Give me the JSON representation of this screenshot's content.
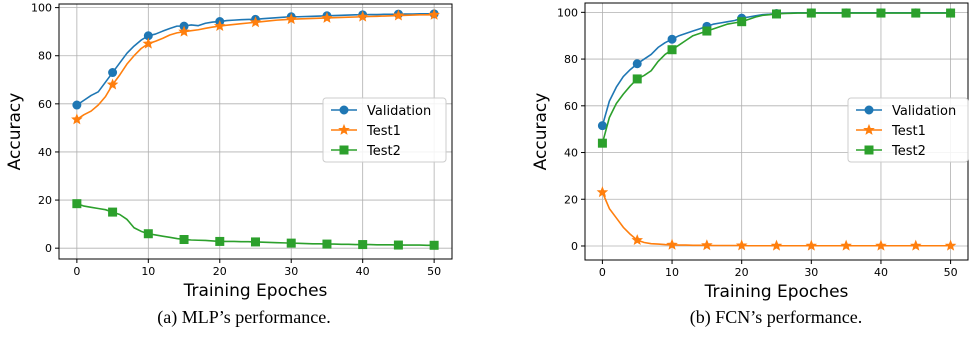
{
  "colors": {
    "validation": "#1f77b4",
    "test1": "#ff7f0e",
    "test2": "#2ca02c",
    "grid": "#b0b0b0",
    "axis": "#000000"
  },
  "chart_data": [
    {
      "type": "line",
      "caption": "(a)  MLP’s performance.",
      "xlabel": "Training Epoches",
      "ylabel": "Accuracy",
      "xlim": [
        -2.5,
        52.5
      ],
      "ylim": [
        -4.5,
        101.5
      ],
      "xticks": [
        0,
        10,
        20,
        30,
        40,
        50
      ],
      "yticks": [
        0,
        20,
        40,
        60,
        80,
        100
      ],
      "grid": true,
      "legend_position": "center-right",
      "x": [
        0,
        1,
        2,
        3,
        4,
        5,
        6,
        7,
        8,
        9,
        10,
        11,
        12,
        13,
        14,
        15,
        16,
        17,
        18,
        19,
        20,
        21,
        22,
        23,
        24,
        25,
        26,
        27,
        28,
        29,
        30,
        31,
        32,
        33,
        34,
        35,
        36,
        37,
        38,
        39,
        40,
        41,
        42,
        43,
        44,
        45,
        46,
        47,
        48,
        49,
        50
      ],
      "marker_every": 5,
      "series": [
        {
          "name": "Validation",
          "color": "#1f77b4",
          "marker": "circle",
          "values": [
            59.5,
            61.5,
            63.5,
            65,
            69,
            73,
            77,
            81,
            84,
            86.5,
            88.3,
            89,
            90.2,
            91.3,
            92.3,
            92.3,
            92.8,
            92.5,
            93.5,
            94,
            94.2,
            94.6,
            94.8,
            95,
            95.1,
            95.1,
            95.4,
            95.6,
            95.8,
            96,
            96.2,
            96.2,
            96.3,
            96.4,
            96.5,
            96.6,
            96.7,
            96.8,
            96.9,
            97,
            97,
            97.1,
            97.1,
            97.2,
            97.2,
            97.3,
            97.3,
            97.3,
            97.4,
            97.4,
            97.4
          ]
        },
        {
          "name": "Test1",
          "color": "#ff7f0e",
          "marker": "star",
          "values": [
            53.5,
            55.5,
            57,
            59.5,
            63,
            68,
            72,
            76.5,
            80,
            83,
            85,
            86,
            87.2,
            88.6,
            89.5,
            90,
            90.4,
            90.8,
            91.4,
            91.9,
            92.3,
            92.7,
            93,
            93.3,
            93.6,
            93.9,
            94.2,
            94.5,
            94.8,
            95,
            95.2,
            95.3,
            95.4,
            95.5,
            95.6,
            95.7,
            95.8,
            95.9,
            96,
            96.1,
            96.2,
            96.3,
            96.4,
            96.5,
            96.6,
            96.7,
            96.8,
            96.9,
            97,
            97,
            97
          ]
        },
        {
          "name": "Test2",
          "color": "#2ca02c",
          "marker": "square",
          "values": [
            18.5,
            17.5,
            17,
            16.5,
            16,
            15,
            14,
            12,
            8.5,
            7,
            6,
            5.5,
            5,
            4.5,
            4,
            3.6,
            3.4,
            3.3,
            3.2,
            3,
            2.8,
            2.8,
            2.8,
            2.7,
            2.7,
            2.6,
            2.5,
            2.4,
            2.3,
            2.2,
            2.1,
            2,
            1.9,
            1.8,
            1.8,
            1.7,
            1.7,
            1.6,
            1.6,
            1.5,
            1.5,
            1.5,
            1.4,
            1.4,
            1.4,
            1.3,
            1.3,
            1.3,
            1.3,
            1.2,
            1.2
          ]
        }
      ]
    },
    {
      "type": "line",
      "caption": "(b)  FCN’s performance.",
      "xlabel": "Training Epoches",
      "ylabel": "Accuracy",
      "xlim": [
        -2.5,
        52.5
      ],
      "ylim": [
        -6,
        104
      ],
      "xticks": [
        0,
        10,
        20,
        30,
        40,
        50
      ],
      "yticks": [
        0,
        20,
        40,
        60,
        80,
        100
      ],
      "grid": true,
      "legend_position": "center-right",
      "x": [
        0,
        1,
        2,
        3,
        4,
        5,
        6,
        7,
        8,
        9,
        10,
        11,
        12,
        13,
        14,
        15,
        16,
        17,
        18,
        19,
        20,
        21,
        22,
        23,
        24,
        25,
        26,
        27,
        28,
        29,
        30,
        31,
        32,
        33,
        34,
        35,
        36,
        37,
        38,
        39,
        40,
        41,
        42,
        43,
        44,
        45,
        46,
        47,
        48,
        49,
        50
      ],
      "marker_every": 5,
      "series": [
        {
          "name": "Validation",
          "color": "#1f77b4",
          "marker": "circle",
          "values": [
            51.5,
            62,
            68,
            72.5,
            75.5,
            78,
            80,
            82,
            85,
            87,
            88.5,
            90,
            91,
            92,
            93,
            94,
            95,
            95.5,
            96,
            96.5,
            97.5,
            98,
            98.5,
            99,
            99.2,
            99.5,
            99.6,
            99.7,
            99.8,
            99.8,
            99.8,
            99.8,
            99.8,
            99.8,
            99.8,
            99.8,
            99.8,
            99.8,
            99.8,
            99.8,
            99.8,
            99.8,
            99.8,
            99.8,
            99.8,
            99.8,
            99.8,
            99.8,
            99.8,
            99.8,
            99.8
          ]
        },
        {
          "name": "Test1",
          "color": "#ff7f0e",
          "marker": "star",
          "values": [
            23,
            16,
            12,
            8,
            5,
            2.5,
            1.5,
            1,
            0.8,
            0.6,
            0.5,
            0.4,
            0.4,
            0.3,
            0.3,
            0.3,
            0.2,
            0.2,
            0.2,
            0.2,
            0.2,
            0.1,
            0.1,
            0.1,
            0.1,
            0.1,
            0.1,
            0.1,
            0.1,
            0.1,
            0.1,
            0.1,
            0.1,
            0.1,
            0.1,
            0.1,
            0.1,
            0.1,
            0.1,
            0.1,
            0.1,
            0.1,
            0.1,
            0.1,
            0.1,
            0.1,
            0.1,
            0.1,
            0.1,
            0.1,
            0.1
          ]
        },
        {
          "name": "Test2",
          "color": "#2ca02c",
          "marker": "square",
          "values": [
            44,
            55,
            61,
            65,
            68.5,
            71.5,
            73,
            75,
            79,
            82,
            84,
            86,
            88,
            90,
            91,
            92,
            93,
            94,
            95,
            95.5,
            96,
            97,
            98,
            98.7,
            99,
            99.3,
            99.5,
            99.6,
            99.7,
            99.7,
            99.7,
            99.7,
            99.7,
            99.7,
            99.7,
            99.7,
            99.7,
            99.7,
            99.7,
            99.7,
            99.7,
            99.7,
            99.7,
            99.7,
            99.7,
            99.7,
            99.7,
            99.7,
            99.7,
            99.7,
            99.7
          ]
        }
      ]
    }
  ]
}
